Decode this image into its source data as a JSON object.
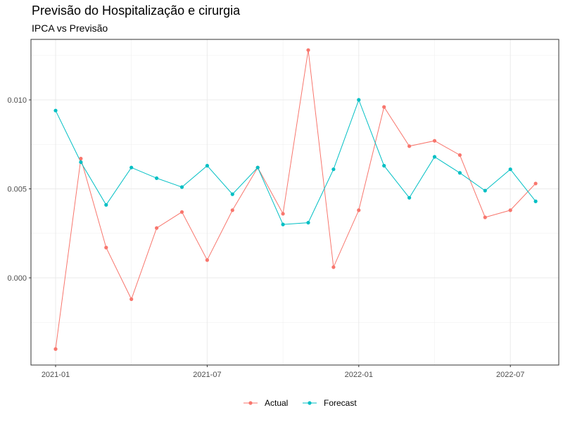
{
  "chart_data": {
    "type": "line",
    "title": "Previsão do Hospitalização e cirurgia",
    "subtitle": "IPCA vs Previsão",
    "xlabel": "",
    "ylabel": "",
    "x_ticks": [
      "2021-01",
      "2021-07",
      "2022-01",
      "2022-07"
    ],
    "y_ticks": [
      "0.000",
      "0.005",
      "0.010"
    ],
    "ylim": [
      -0.0049,
      0.0134
    ],
    "x": [
      "2021-01",
      "2021-02",
      "2021-03",
      "2021-04",
      "2021-05",
      "2021-06",
      "2021-07",
      "2021-08",
      "2021-09",
      "2021-10",
      "2021-11",
      "2021-12",
      "2022-01",
      "2022-02",
      "2022-03",
      "2022-04",
      "2022-05",
      "2022-06",
      "2022-07",
      "2022-08"
    ],
    "series": [
      {
        "name": "Actual",
        "color": "#F8766D",
        "values": [
          -0.004,
          0.0067,
          0.0017,
          -0.0012,
          0.0028,
          0.0037,
          0.001,
          0.0038,
          0.0062,
          0.0036,
          0.0128,
          0.0006,
          0.0038,
          0.0096,
          0.0074,
          0.0077,
          0.0069,
          0.0034,
          0.0038,
          0.0053
        ]
      },
      {
        "name": "Forecast",
        "color": "#00BFC4",
        "values": [
          0.0094,
          0.0065,
          0.0041,
          0.0062,
          0.0056,
          0.0051,
          0.0063,
          0.0047,
          0.0062,
          0.003,
          0.0031,
          0.0061,
          0.01,
          0.0063,
          0.0045,
          0.0068,
          0.0059,
          0.0049,
          0.0061,
          0.0043
        ]
      }
    ],
    "grid": true,
    "legend_position": "bottom"
  }
}
